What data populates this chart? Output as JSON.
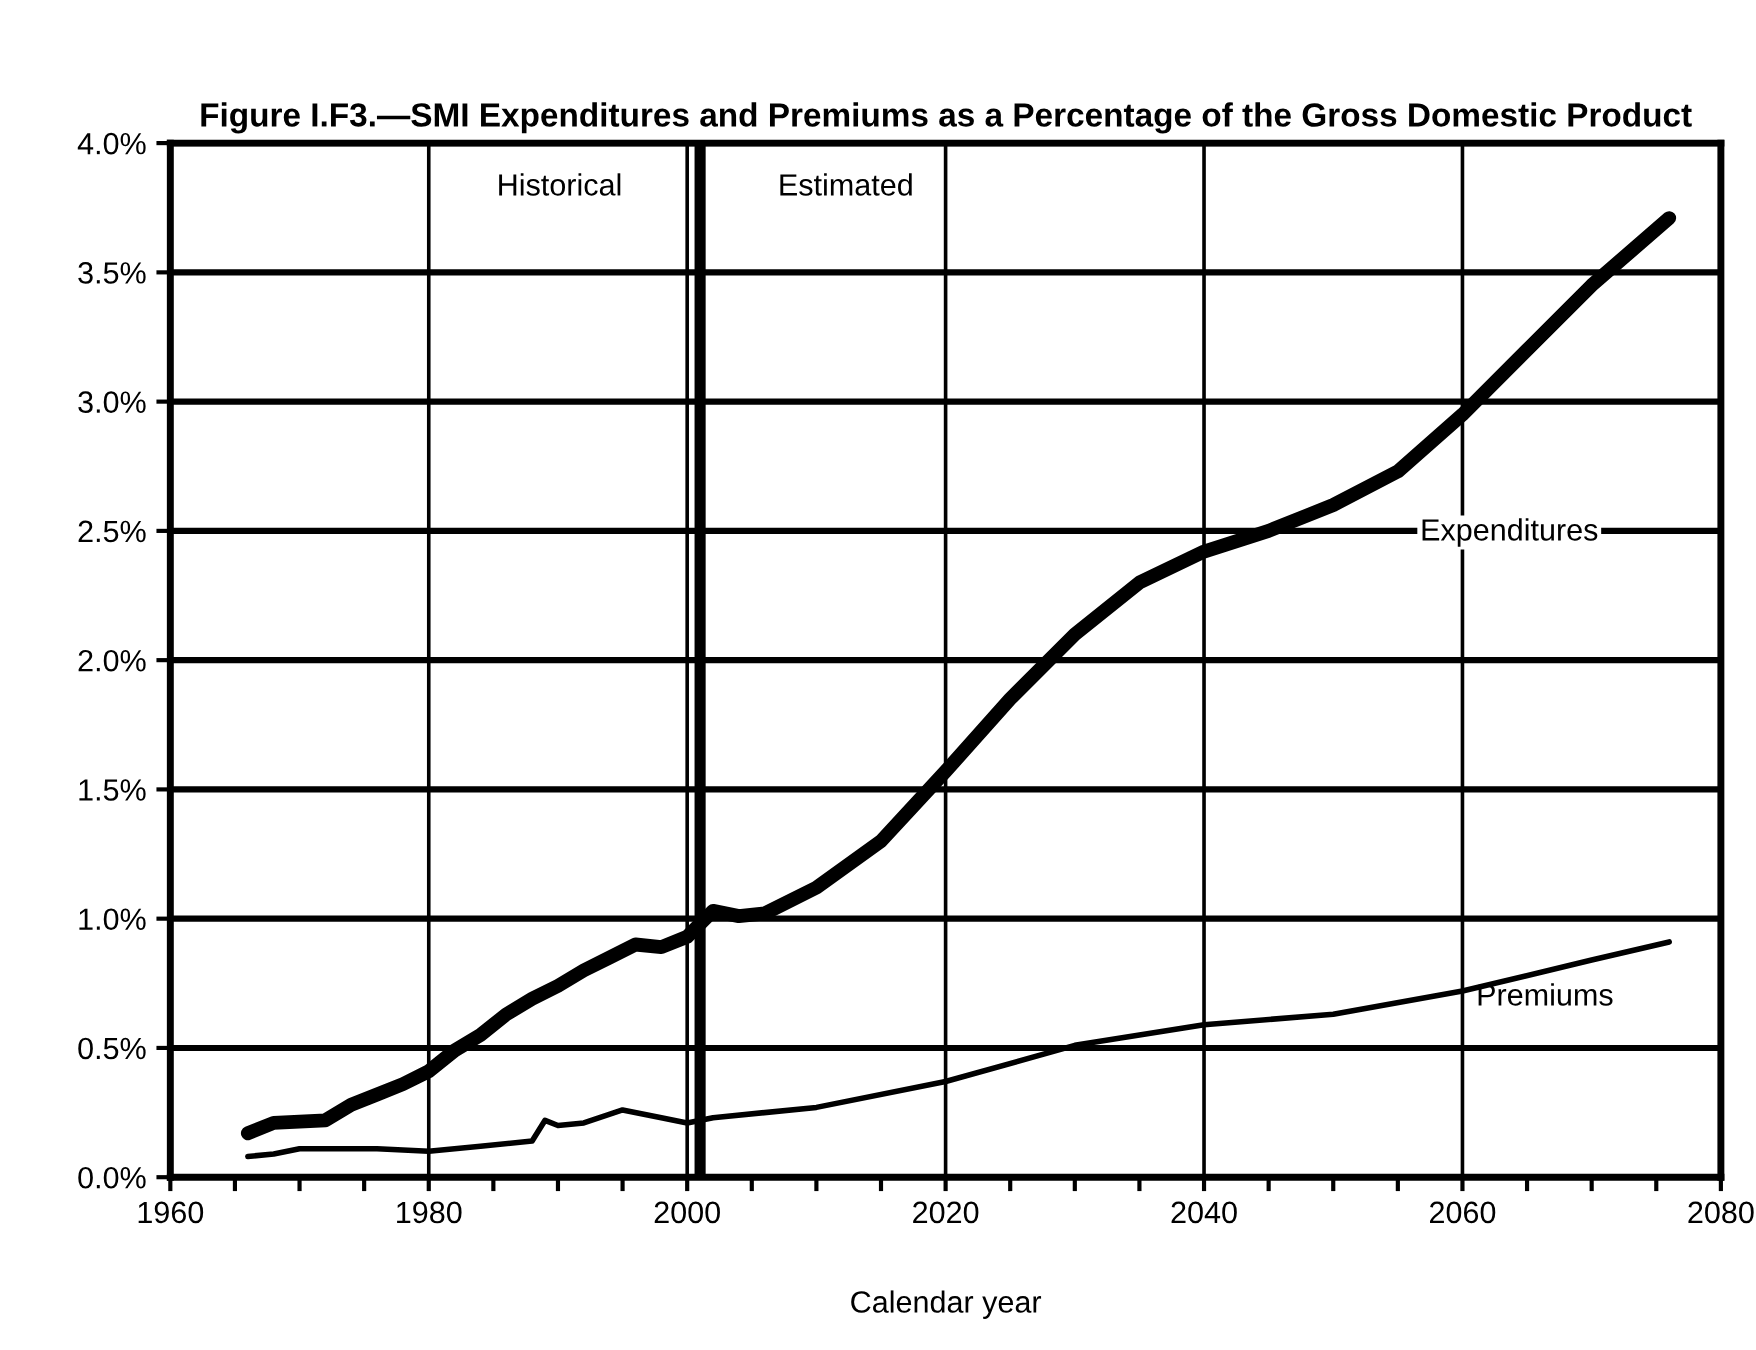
{
  "chart_data": {
    "type": "line",
    "title": "Figure I.F3.—SMI Expenditures and Premiums as a Percentage of the Gross Domestic Product",
    "xlabel": "Calendar year",
    "series": [
      {
        "name": "Expenditures",
        "color": "#000000",
        "x": [
          1966,
          1968,
          1972,
          1974,
          1976,
          1978,
          1980,
          1982,
          1984,
          1986,
          1988,
          1990,
          1992,
          1994,
          1996,
          1998,
          2000,
          2002,
          2004,
          2006,
          2010,
          2015,
          2020,
          2025,
          2030,
          2035,
          2040,
          2045,
          2050,
          2055,
          2060,
          2065,
          2070,
          2076
        ],
        "values": [
          0.17,
          0.21,
          0.22,
          0.28,
          0.32,
          0.36,
          0.41,
          0.49,
          0.55,
          0.63,
          0.69,
          0.74,
          0.8,
          0.85,
          0.9,
          0.89,
          0.93,
          1.03,
          1.01,
          1.02,
          1.12,
          1.3,
          1.57,
          1.85,
          2.1,
          2.3,
          2.42,
          2.5,
          2.6,
          2.73,
          2.95,
          3.2,
          3.45,
          3.71
        ]
      },
      {
        "name": "Premiums",
        "color": "#000000",
        "x": [
          1966,
          1968,
          1970,
          1972,
          1976,
          1980,
          1984,
          1988,
          1989,
          1990,
          1992,
          1995,
          1998,
          2000,
          2002,
          2010,
          2020,
          2030,
          2040,
          2050,
          2060,
          2070,
          2076
        ],
        "values": [
          0.08,
          0.09,
          0.11,
          0.11,
          0.11,
          0.1,
          0.12,
          0.14,
          0.22,
          0.2,
          0.21,
          0.26,
          0.23,
          0.21,
          0.23,
          0.27,
          0.37,
          0.51,
          0.59,
          0.63,
          0.72,
          0.84,
          0.91
        ]
      }
    ],
    "xlim": [
      1960,
      2080
    ],
    "xticks": [
      1960,
      {
        "value": 1965,
        "label": null
      },
      {
        "value": 1970,
        "label": null
      },
      {
        "value": 1975,
        "label": null
      },
      1980,
      {
        "value": 1985,
        "label": null
      },
      {
        "value": 1990,
        "label": null
      },
      {
        "value": 1995,
        "label": null
      },
      2000,
      {
        "value": 2005,
        "label": null
      },
      {
        "value": 2010,
        "label": null
      },
      {
        "value": 2015,
        "label": null
      },
      2020,
      {
        "value": 2025,
        "label": null
      },
      {
        "value": 2030,
        "label": null
      },
      {
        "value": 2035,
        "label": null
      },
      2040,
      {
        "value": 2045,
        "label": null
      },
      {
        "value": 2050,
        "label": null
      },
      {
        "value": 2055,
        "label": null
      },
      2060,
      {
        "value": 2065,
        "label": null
      },
      {
        "value": 2070,
        "label": null
      },
      {
        "value": 2075,
        "label": null
      },
      2080
    ],
    "ylim": [
      0,
      4
    ],
    "yticks": [
      {
        "value": 0,
        "label": "0.0%"
      },
      {
        "value": 0.5,
        "label": "0.5%"
      },
      {
        "value": 1,
        "label": "1.0%"
      },
      {
        "value": 1.5,
        "label": "1.5%"
      },
      {
        "value": 2,
        "label": "2.0%"
      },
      {
        "value": 2.5,
        "label": "2.5%"
      },
      {
        "value": 3,
        "label": "3.0%"
      },
      {
        "value": 3.5,
        "label": "3.5%"
      },
      {
        "value": 4,
        "label": "4.0%"
      }
    ],
    "grid": true,
    "legend": false,
    "ref_lines": [
      {
        "axis": "x",
        "value": 2001,
        "color": "#000000"
      }
    ],
    "annotations": [
      "Historical",
      "Estimated"
    ]
  }
}
